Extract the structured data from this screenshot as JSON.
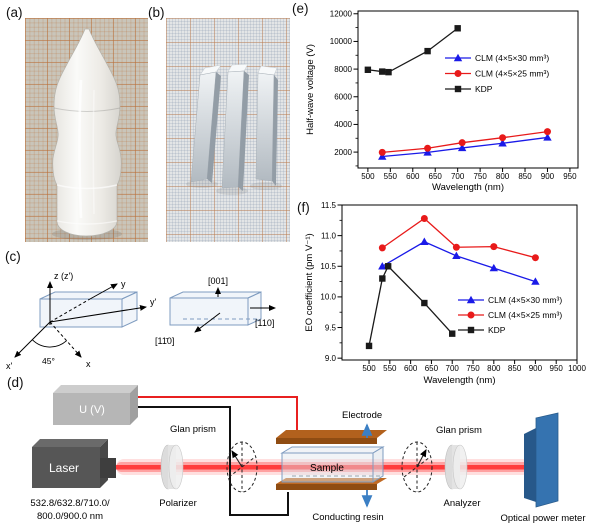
{
  "figure": {
    "panel_labels": {
      "a": "(a)",
      "b": "(b)",
      "c": "(c)",
      "d": "(d)",
      "e": "(e)",
      "f": "(f)"
    }
  },
  "panel_c": {
    "left": {
      "z": "z (z')",
      "y": "y",
      "y_prime": "y'",
      "x_prime": "x'",
      "x": "x",
      "angle": "45°"
    },
    "right": {
      "up": "[001]",
      "right": "[110]",
      "front": "[11̄0]"
    }
  },
  "panel_d": {
    "voltage_source": "U (V)",
    "laser": "Laser",
    "wavelengths_line1": "532.8/632.8/710.0/",
    "wavelengths_line2": "800.0/900.0 nm",
    "glan_prism_left": "Glan prism",
    "glan_prism_right": "Glan prism",
    "polarizer": "Polarizer",
    "analyzer": "Analyzer",
    "electrode": "Electrode",
    "sample": "Sample",
    "conducting_resin": "Conducting resin",
    "power_meter": "Optical power meter"
  },
  "colors": {
    "clm30_blue": "#1a1ae8",
    "clm25_red": "#e81a1a",
    "kdp_black": "#1a1a1a",
    "laser_beam_red": "#ff2a2a",
    "electrode_copper": "#b2611d",
    "power_meter_blue": "#3573b0",
    "crystal_box_edge": "#7f9cc0"
  },
  "chart_data": [
    {
      "id": "e",
      "type": "line",
      "title": "",
      "xlabel": "Wavelength (nm)",
      "ylabel": "Half-wave voltage (V)",
      "xlim": [
        478,
        968
      ],
      "ylim": [
        850,
        12200
      ],
      "xticks": [
        500,
        550,
        600,
        650,
        700,
        750,
        800,
        850,
        900,
        950
      ],
      "yticks": [
        2000,
        4000,
        6000,
        8000,
        10000,
        12000
      ],
      "yminor": 1000,
      "grid": false,
      "legend_position": "inside middle-right",
      "series": [
        {
          "name": "CLM (4×5×30 mm³)",
          "color": "#1a1ae8",
          "marker": "triangle",
          "points": [
            [
              532,
              1680
            ],
            [
              633,
              1980
            ],
            [
              710,
              2300
            ],
            [
              800,
              2640
            ],
            [
              900,
              3060
            ]
          ]
        },
        {
          "name": "CLM (4×5×25 mm³)",
          "color": "#e81a1a",
          "marker": "circle",
          "points": [
            [
              532,
              1980
            ],
            [
              633,
              2280
            ],
            [
              710,
              2680
            ],
            [
              800,
              3040
            ],
            [
              900,
              3480
            ]
          ]
        },
        {
          "name": "KDP",
          "color": "#1a1a1a",
          "marker": "square",
          "points": [
            [
              500,
              7950
            ],
            [
              532,
              7820
            ],
            [
              546,
              7780
            ],
            [
              633,
              9300
            ],
            [
              700,
              10950
            ]
          ]
        }
      ]
    },
    {
      "id": "f",
      "type": "line",
      "title": "",
      "xlabel": "Wavelength (nm)",
      "ylabel": "EO coefficient (pm V⁻¹)",
      "xlim": [
        435,
        1000
      ],
      "ylim": [
        8.97,
        11.5
      ],
      "xticks": [
        500,
        550,
        600,
        650,
        700,
        750,
        800,
        850,
        900,
        950,
        1000
      ],
      "yticks": [
        9,
        9.5,
        10,
        10.5,
        11,
        11.5
      ],
      "ytick_labels": [
        "9.0",
        "9.5",
        "10.0",
        "10.5",
        "11.0",
        "11.5"
      ],
      "yminor": 0.25,
      "grid": false,
      "legend_position": "inside bottom-right",
      "series": [
        {
          "name": "CLM (4×5×30 mm³)",
          "color": "#1a1ae8",
          "marker": "triangle",
          "points": [
            [
              532,
              10.5
            ],
            [
              633,
              10.9
            ],
            [
              710,
              10.67
            ],
            [
              800,
              10.47
            ],
            [
              900,
              10.25
            ]
          ]
        },
        {
          "name": "CLM (4×5×25 mm³)",
          "color": "#e81a1a",
          "marker": "circle",
          "points": [
            [
              532,
              10.8
            ],
            [
              633,
              11.28
            ],
            [
              710,
              10.81
            ],
            [
              800,
              10.82
            ],
            [
              900,
              10.64
            ]
          ]
        },
        {
          "name": "KDP",
          "color": "#1a1a1a",
          "marker": "square",
          "points": [
            [
              500,
              9.2
            ],
            [
              532,
              10.3
            ],
            [
              546,
              10.5
            ],
            [
              633,
              9.9
            ],
            [
              700,
              9.4
            ]
          ]
        }
      ]
    }
  ]
}
